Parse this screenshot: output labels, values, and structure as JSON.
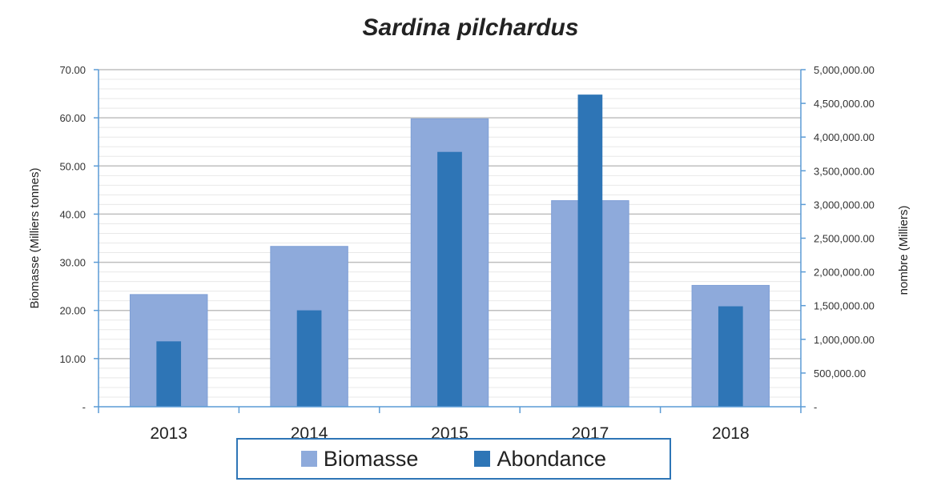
{
  "chart_data": {
    "type": "bar",
    "title": "Sardina pilchardus",
    "categories": [
      "2013",
      "2014",
      "2015",
      "2017",
      "2018"
    ],
    "series": [
      {
        "name": "Biomasse",
        "axis": "left",
        "color": "#8eaadb",
        "values": [
          23.3,
          33.3,
          59.8,
          42.8,
          25.2
        ]
      },
      {
        "name": "Abondance",
        "axis": "right",
        "color": "#2e75b6",
        "values": [
          970000,
          1430000,
          3780000,
          4630000,
          1490000
        ]
      }
    ],
    "ylabel": "Biomasse (Milliers tonnes)",
    "y2label": "nombre (Milliers)",
    "ylim": [
      0,
      70
    ],
    "y2lim": [
      0,
      5000000
    ],
    "yticks": [
      "-",
      "10.00",
      "20.00",
      "30.00",
      "40.00",
      "50.00",
      "60.00",
      "70.00"
    ],
    "y2ticks": [
      "-",
      "500,000.00",
      "1,000,000.00",
      "1,500,000.00",
      "2,000,000.00",
      "2,500,000.00",
      "3,000,000.00",
      "3,500,000.00",
      "4,000,000.00",
      "4,500,000.00",
      "5,000,000.00"
    ],
    "grid": true,
    "legend_position": "bottom"
  }
}
